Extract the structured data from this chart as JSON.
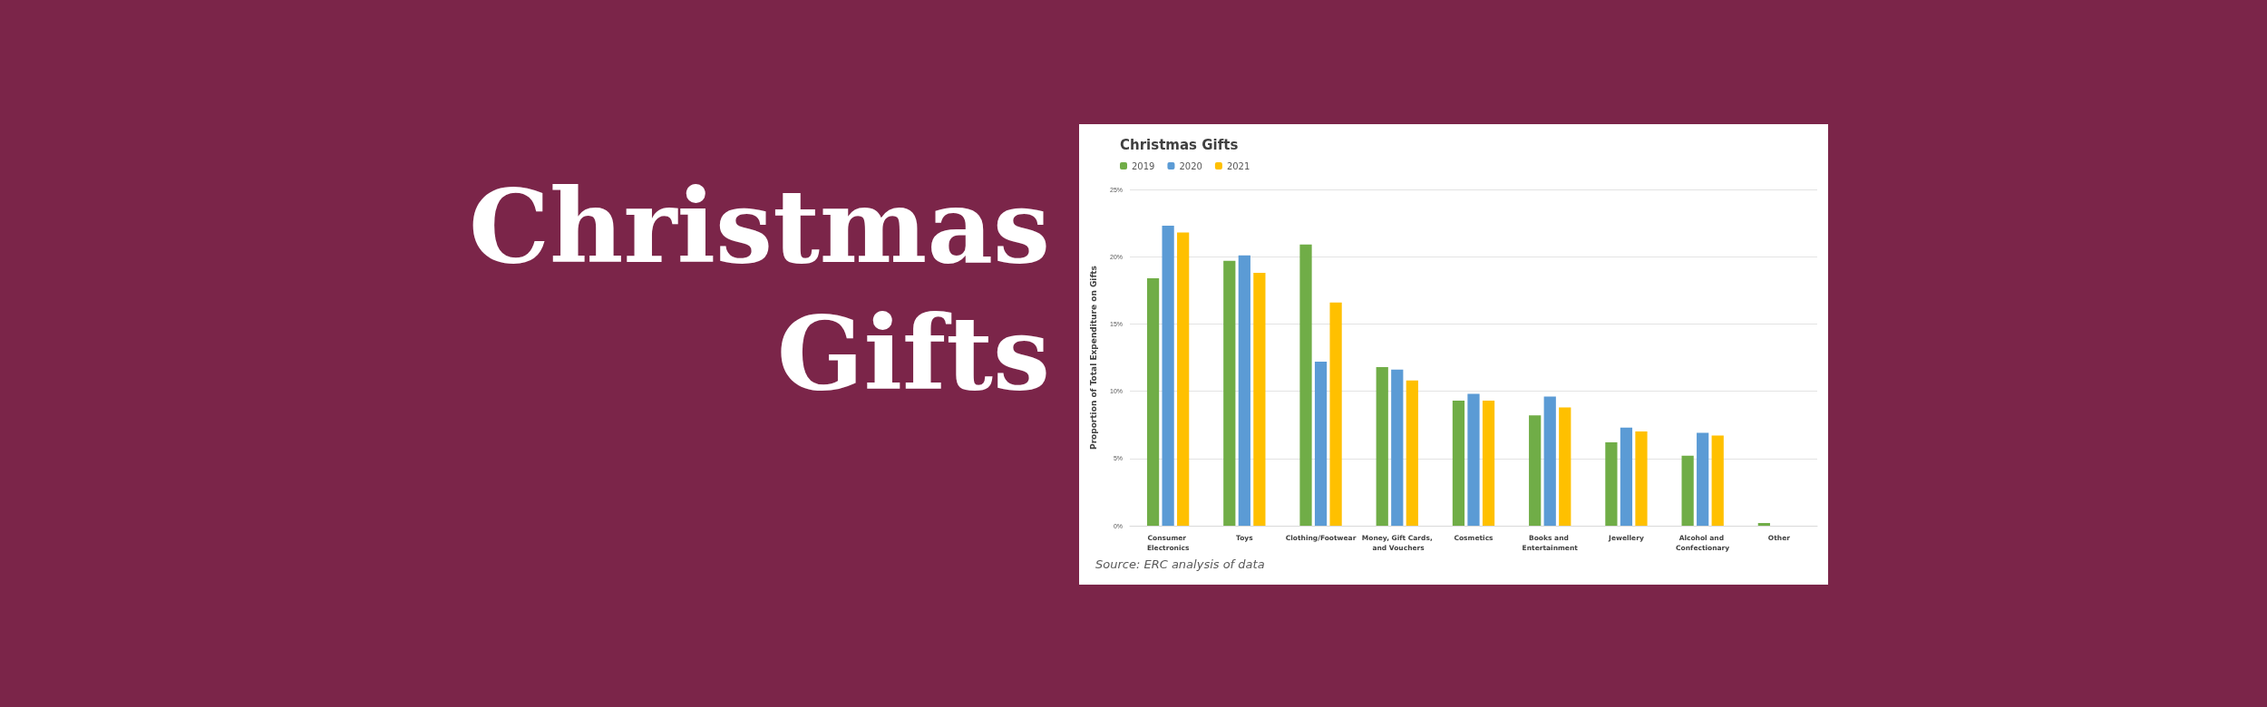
{
  "chart_data": {
    "type": "bar",
    "title": "Christmas Gifts",
    "subtitle": "Christmas Gifts",
    "ylabel": "Proportion of Total Expenditure on Gifts",
    "categories": [
      "Consumer Electronics",
      "Toys",
      "Clothing/Footwear",
      "Money, Gift Cards, and Vouchers",
      "Cosmetics",
      "Books and Entertainment",
      "Jewellery",
      "Alcohol and Confectionary",
      "Other"
    ],
    "series": [
      {
        "name": "2019",
        "color": "#70ad47",
        "values": [
          18.4,
          19.7,
          20.9,
          11.8,
          9.3,
          8.2,
          6.2,
          5.2,
          0.2
        ]
      },
      {
        "name": "2020",
        "color": "#5b9bd5",
        "values": [
          22.3,
          20.1,
          12.2,
          11.6,
          9.8,
          9.6,
          7.3,
          6.9,
          0
        ]
      },
      {
        "name": "2021",
        "color": "#ffc000",
        "values": [
          21.8,
          18.8,
          16.6,
          10.8,
          9.3,
          8.8,
          7.0,
          6.7,
          0
        ]
      }
    ],
    "ylim": [
      0,
      25
    ],
    "yticks": [
      {
        "value": 0,
        "label": "0%"
      },
      {
        "value": 5,
        "label": "5%"
      },
      {
        "value": 10,
        "label": "10%"
      },
      {
        "value": 15,
        "label": "15%"
      },
      {
        "value": 20,
        "label": "20%"
      },
      {
        "value": 25,
        "label": "25%"
      }
    ],
    "grid": "y",
    "legend": "top left",
    "annotations": [
      "Source: ERC analysis of data"
    ]
  }
}
